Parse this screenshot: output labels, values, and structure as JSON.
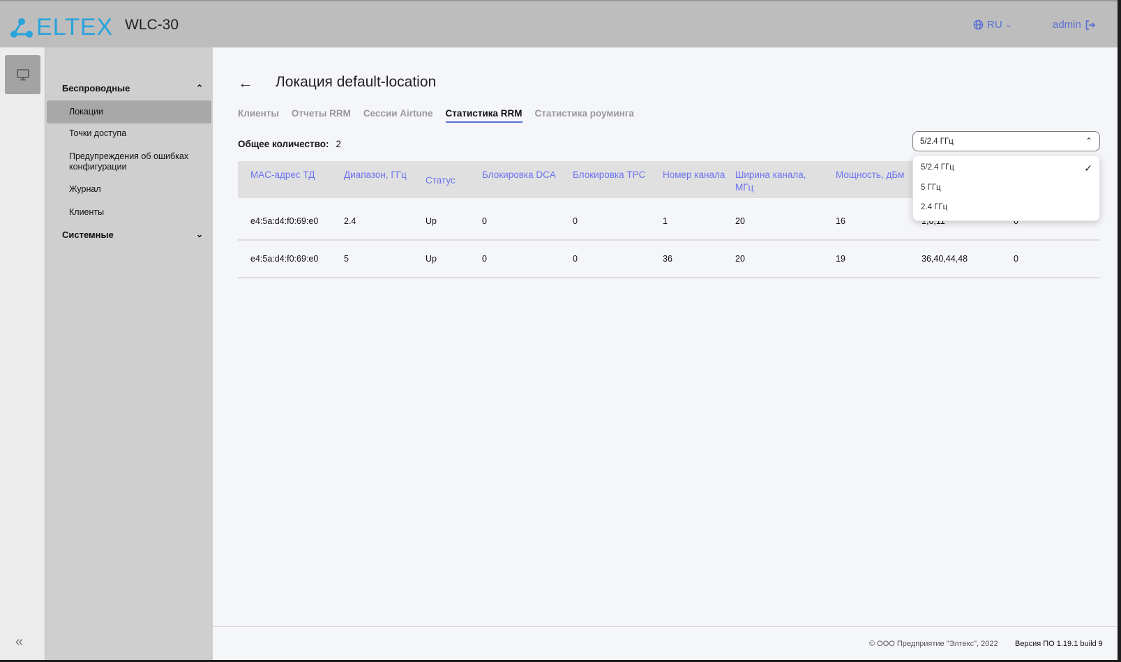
{
  "header": {
    "logo": "ELTEX",
    "product": "WLC-30",
    "language": "RU",
    "user": "admin"
  },
  "sidebar": {
    "groups": [
      {
        "label": "Беспроводные",
        "expanded": true,
        "items": [
          "Локации",
          "Точки доступа",
          "Предупреждения об ошибках конфигурации",
          "Журнал",
          "Клиенты"
        ],
        "active": "Локации"
      },
      {
        "label": "Системные",
        "expanded": false
      }
    ]
  },
  "page": {
    "title": "Локация default-location",
    "tabs": [
      "Клиенты",
      "Отчеты RRM",
      "Сессии Airtune",
      "Статистика RRM",
      "Статистика роуминга"
    ],
    "active_tab": "Статистика RRM",
    "count_label": "Общее количество:",
    "count": "2",
    "filter": {
      "selected": "5/2.4 ГГц",
      "options": [
        "5/2.4 ГГц",
        "5 ГГц",
        "2.4 ГГц"
      ]
    },
    "table": {
      "columns": [
        "MAC-адрес ТД",
        "Диапазон, ГГц",
        "Статус",
        "Блокировка DCA",
        "Блокировка TPC",
        "Номер канала",
        "Ширина канала, МГц",
        "Мощность, дБм",
        "",
        ""
      ],
      "rows": [
        [
          "e4:5a:d4:f0:69:e0",
          "2.4",
          "Up",
          "0",
          "0",
          "1",
          "20",
          "16",
          "1,6,11",
          "0"
        ],
        [
          "e4:5a:d4:f0:69:e0",
          "5",
          "Up",
          "0",
          "0",
          "36",
          "20",
          "19",
          "36,40,44,48",
          "0"
        ]
      ]
    }
  },
  "footer": {
    "copyright": "© ООО Предприятие \"Элтекс\", 2022",
    "version": "Версия ПО 1.19.1 build 9"
  },
  "colors": {
    "accent": "#5b6fd6",
    "header_link": "#6b73f0",
    "logo": "#29a3dc"
  }
}
